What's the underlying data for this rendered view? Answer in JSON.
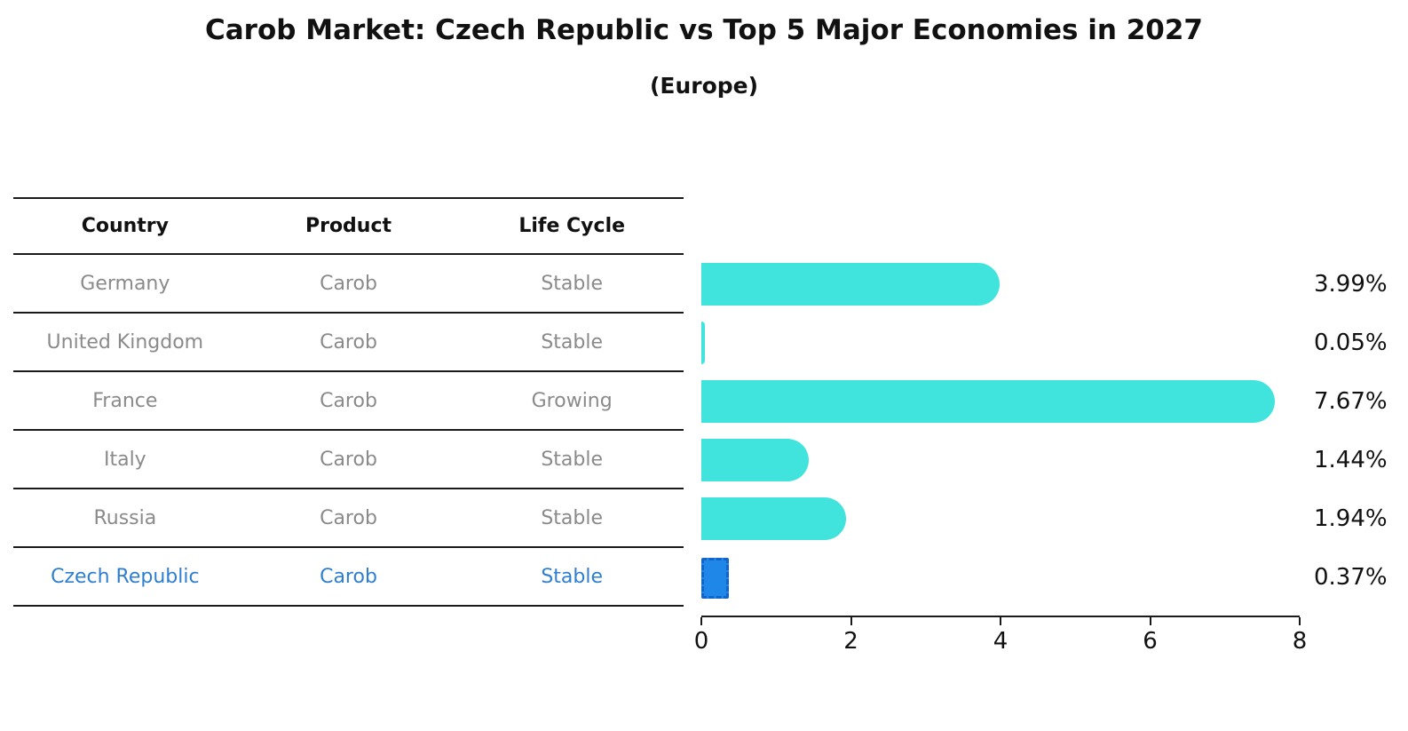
{
  "title": "Carob Market: Czech Republic vs Top 5 Major Economies in 2027",
  "subtitle": "(Europe)",
  "table": {
    "columns": [
      "Country",
      "Product",
      "Life Cycle"
    ],
    "rows": [
      {
        "country": "Germany",
        "product": "Carob",
        "life_cycle": "Stable",
        "highlight": false
      },
      {
        "country": "United Kingdom",
        "product": "Carob",
        "life_cycle": "Stable",
        "highlight": false
      },
      {
        "country": "France",
        "product": "Carob",
        "life_cycle": "Growing",
        "highlight": false
      },
      {
        "country": "Italy",
        "product": "Carob",
        "life_cycle": "Stable",
        "highlight": false
      },
      {
        "country": "Russia",
        "product": "Carob",
        "life_cycle": "Stable",
        "highlight": false
      },
      {
        "country": "Czech Republic",
        "product": "Carob",
        "life_cycle": "Stable",
        "highlight": true
      }
    ]
  },
  "chart_data": {
    "type": "bar",
    "orientation": "horizontal",
    "title": "Carob Market: Czech Republic vs Top 5 Major Economies in 2027 (Europe)",
    "categories": [
      "Germany",
      "United Kingdom",
      "France",
      "Italy",
      "Russia",
      "Czech Republic"
    ],
    "values": [
      3.99,
      0.05,
      7.67,
      1.44,
      1.94,
      0.37
    ],
    "value_labels": [
      "3.99%",
      "0.05%",
      "7.67%",
      "1.44%",
      "1.94%",
      "0.37%"
    ],
    "xlim": [
      0,
      8
    ],
    "x_ticks": [
      "0",
      "2",
      "4",
      "6",
      "8"
    ],
    "grid": false,
    "legend": false,
    "highlight_index": 5,
    "bar_color": "#40e4dc",
    "highlight_color": "#1e87e8",
    "highlight_border_color": "#1464c8"
  },
  "colors": {
    "highlight_text": "#2e7fd2",
    "axis_line": "#1a1a1a",
    "table_text": "#8a8a8a",
    "heading_text": "#111111"
  }
}
